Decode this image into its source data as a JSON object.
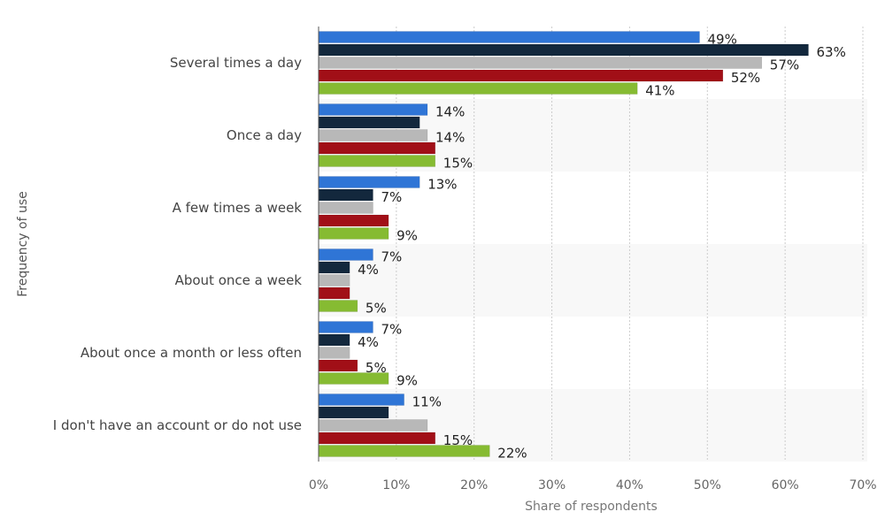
{
  "chart_data": {
    "type": "bar",
    "orientation": "horizontal",
    "title": "",
    "xlabel": "Share of respondents",
    "ylabel": "Frequency of use",
    "xlim": [
      0,
      70
    ],
    "x_ticks": [
      "0%",
      "10%",
      "20%",
      "30%",
      "40%",
      "50%",
      "60%",
      "70%"
    ],
    "x_tick_values": [
      0,
      10,
      20,
      30,
      40,
      50,
      60,
      70
    ],
    "grid": "vertical dotted",
    "legend": "none",
    "categories": [
      "Several times a day",
      "Once a day",
      "A few times a week",
      "About once a week",
      "About once a month or less often",
      "I don't have an account or do not use"
    ],
    "series": [
      {
        "color": "#2f75d6",
        "values": [
          49,
          14,
          13,
          7,
          7,
          11
        ],
        "labels": [
          "49%",
          "14%",
          "13%",
          "7%",
          "7%",
          "11%"
        ]
      },
      {
        "color": "#13283d",
        "values": [
          63,
          13,
          7,
          4,
          4,
          9
        ],
        "labels": [
          "63%",
          null,
          "7%",
          "4%",
          "4%",
          null
        ]
      },
      {
        "color": "#b8b8b8",
        "values": [
          57,
          14,
          7,
          4,
          4,
          14
        ],
        "labels": [
          "57%",
          "14%",
          null,
          null,
          null,
          null
        ]
      },
      {
        "color": "#a10f17",
        "values": [
          52,
          15,
          9,
          4,
          5,
          15
        ],
        "labels": [
          "52%",
          null,
          null,
          null,
          "5%",
          "15%"
        ]
      },
      {
        "color": "#86bb32",
        "values": [
          41,
          15,
          9,
          5,
          9,
          22
        ],
        "labels": [
          "41%",
          "15%",
          "9%",
          "5%",
          "9%",
          "22%"
        ]
      }
    ]
  }
}
